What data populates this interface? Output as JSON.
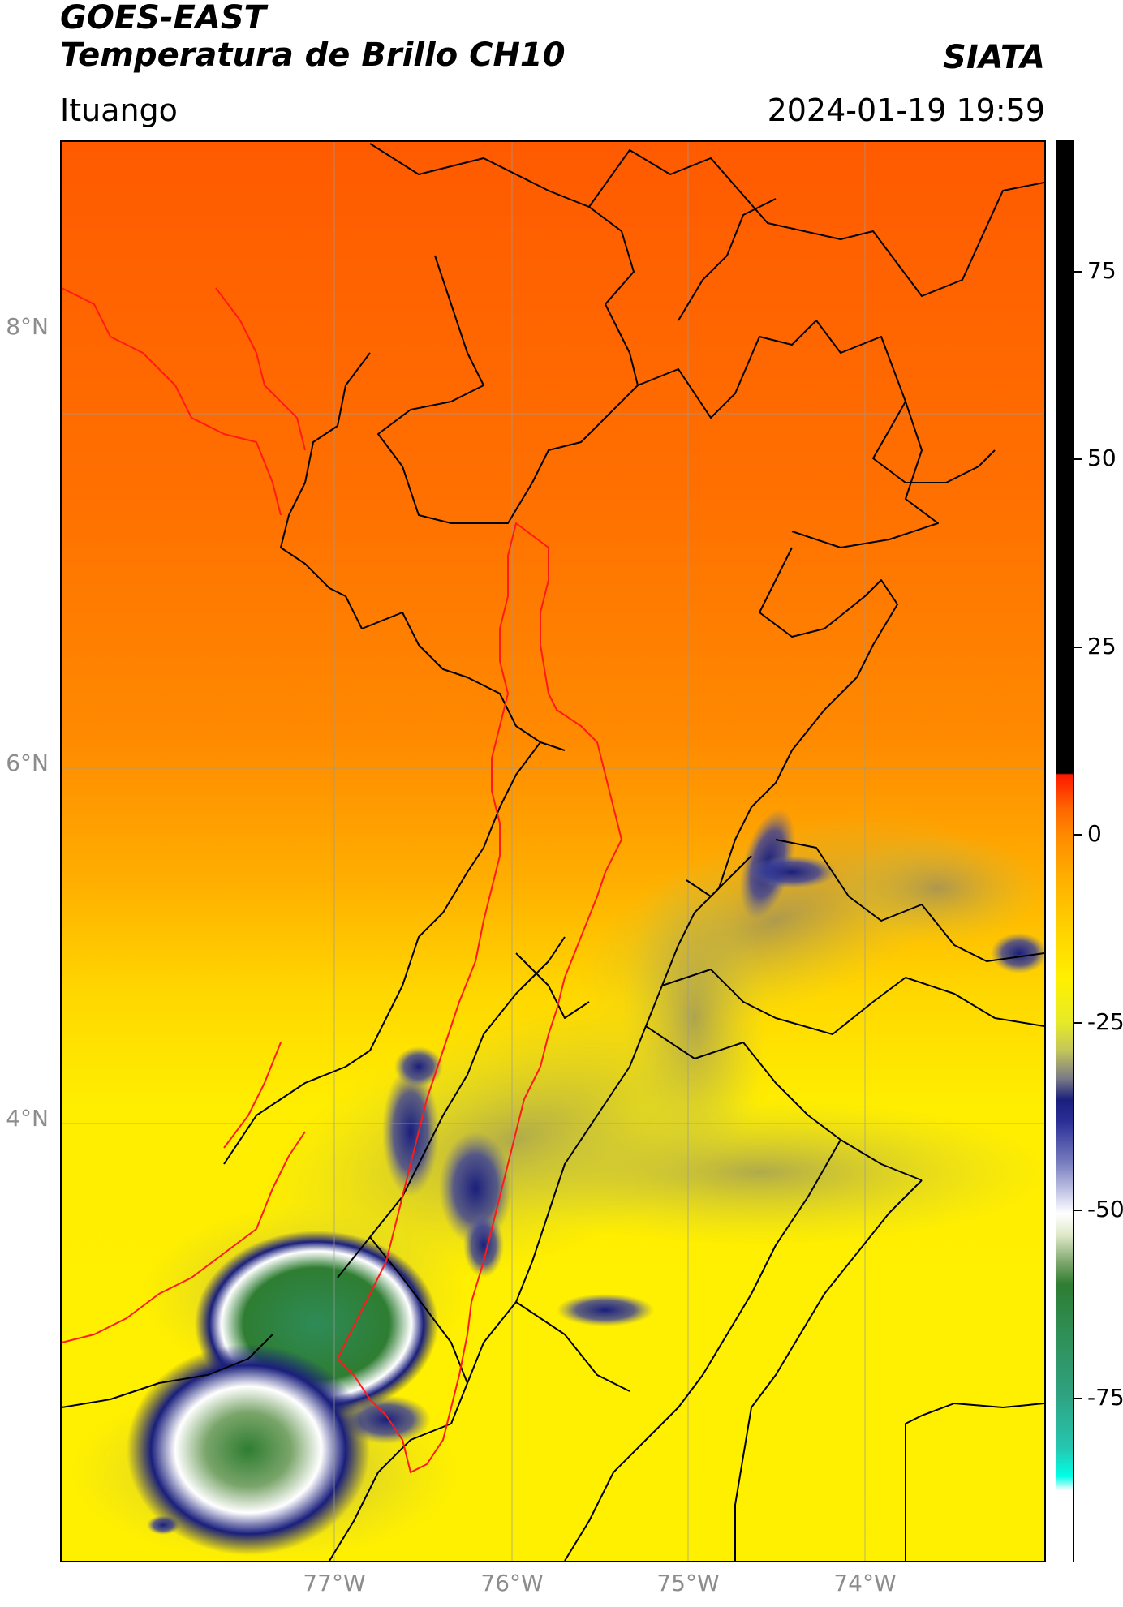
{
  "header": {
    "title_line1": "GOES-EAST",
    "title_line2": "Temperatura de Brillo CH10",
    "brand": "SIATA",
    "location": "Ituango",
    "datetime": "2024-01-19 19:59"
  },
  "axes": {
    "lat_labels": [
      "8°N",
      "6°N",
      "4°N"
    ],
    "lon_labels": [
      "77°W",
      "76°W",
      "75°W",
      "74°W"
    ]
  },
  "colorbar": {
    "ticks": [
      "75",
      "50",
      "25",
      "0",
      "-25",
      "-50",
      "-75"
    ],
    "range": [
      -95,
      90
    ],
    "colors": {
      "hot": "#000000",
      "red": "#ff1800",
      "orange": "#ff8c00",
      "yellow": "#fff000",
      "grey": "#7a7a86",
      "navy": "#1a1f7c",
      "white": "#ffffff",
      "green": "#2e7d32",
      "cyan": "#00ffe6"
    }
  },
  "map": {
    "country_border_color": "#ff0000",
    "admin_border_color": "#000000",
    "grid": true
  }
}
